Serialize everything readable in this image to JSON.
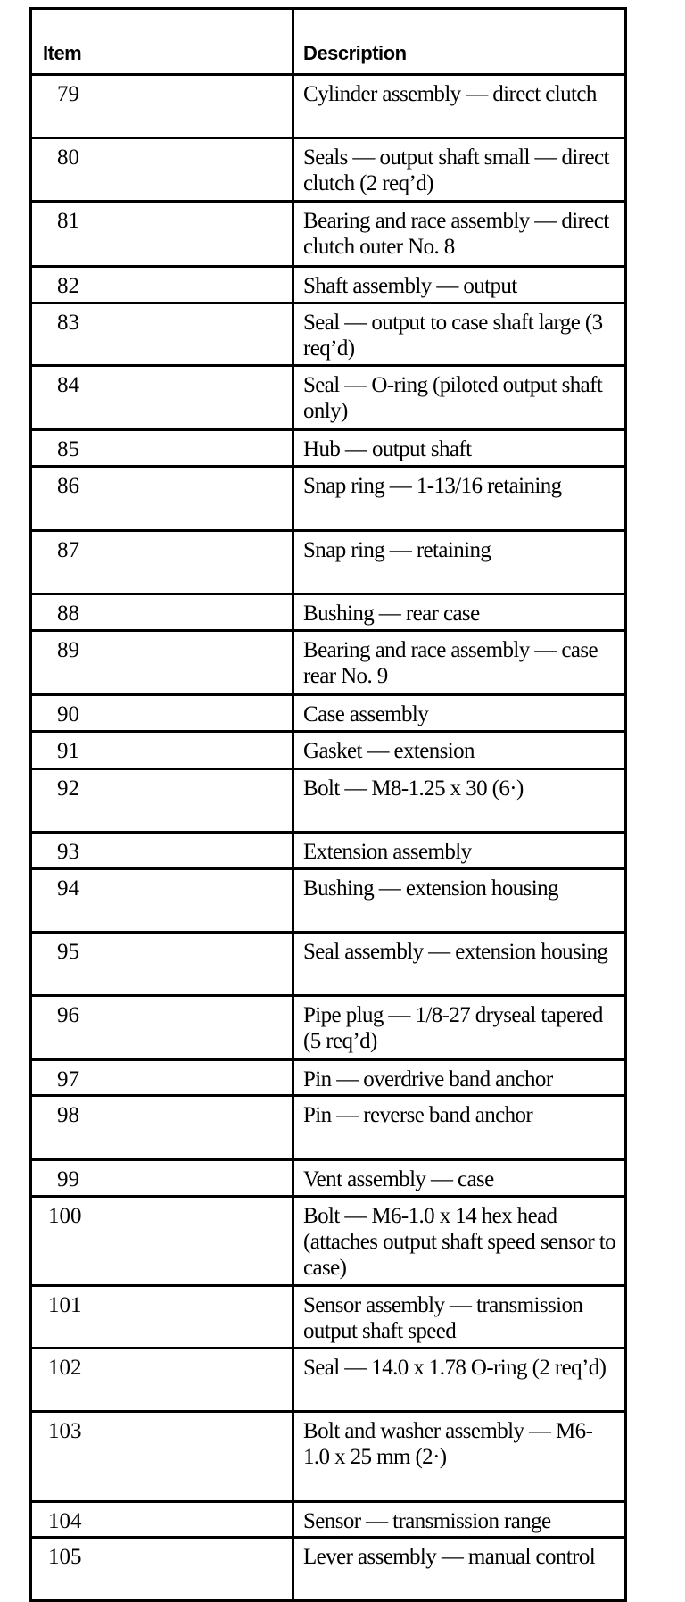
{
  "table": {
    "headers": {
      "item": "Item",
      "description": "Description"
    },
    "rows": [
      {
        "item": "79",
        "description": "Cylinder assembly — direct clutch"
      },
      {
        "item": "80",
        "description": "Seals — output shaft small — direct clutch (2 req’d)"
      },
      {
        "item": "81",
        "description": "Bearing and race assembly — direct clutch outer No. 8"
      },
      {
        "item": "82",
        "description": "Shaft assembly — output"
      },
      {
        "item": "83",
        "description": "Seal — output to case shaft large (3 req’d)"
      },
      {
        "item": "84",
        "description": "Seal — O-ring (piloted output shaft only)"
      },
      {
        "item": "85",
        "description": "Hub — output shaft"
      },
      {
        "item": "86",
        "description": "Snap ring — 1-13/16 retaining"
      },
      {
        "item": "87",
        "description": "Snap ring — retaining"
      },
      {
        "item": "88",
        "description": "Bushing — rear case"
      },
      {
        "item": "89",
        "description": "Bearing and race assembly — case rear No. 9"
      },
      {
        "item": "90",
        "description": "Case assembly"
      },
      {
        "item": "91",
        "description": "Gasket — extension"
      },
      {
        "item": "92",
        "description": "Bolt — M8-1.25 x 30 (6·)"
      },
      {
        "item": "93",
        "description": "Extension assembly"
      },
      {
        "item": "94",
        "description": "Bushing — extension housing"
      },
      {
        "item": "95",
        "description": "Seal assembly — extension housing"
      },
      {
        "item": "96",
        "description": "Pipe plug — 1/8-27 dryseal tapered (5 req’d)"
      },
      {
        "item": "97",
        "description": "Pin — overdrive band anchor"
      },
      {
        "item": "98",
        "description": "Pin — reverse band anchor"
      },
      {
        "item": "99",
        "description": "Vent assembly — case"
      },
      {
        "item": "100",
        "description": "Bolt — M6-1.0 x 14 hex head (attaches output shaft speed sensor to case)"
      },
      {
        "item": "101",
        "description": "Sensor assembly — transmission output shaft speed"
      },
      {
        "item": "102",
        "description": "Seal — 14.0 x 1.78 O-ring (2 req’d)"
      },
      {
        "item": "103",
        "description": "Bolt and washer assembly — M6-1.0 x 25 mm (2·)"
      },
      {
        "item": "104",
        "description": "Sensor — transmission range"
      },
      {
        "item": "105",
        "description": "Lever assembly — manual control"
      }
    ]
  }
}
